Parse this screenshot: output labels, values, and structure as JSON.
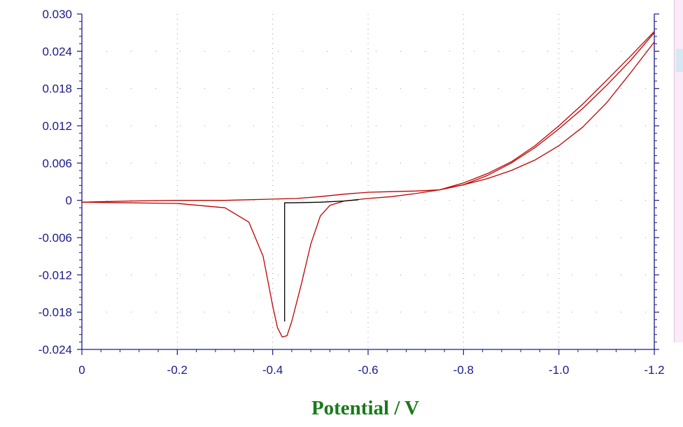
{
  "chart_data": {
    "type": "line",
    "title": "",
    "xlabel": "Potential / V",
    "ylabel": "",
    "xlim": [
      0,
      -1.2
    ],
    "ylim": [
      -0.024,
      0.03
    ],
    "x_ticks": [
      "0",
      "-0.2",
      "-0.4",
      "-0.6",
      "-0.8",
      "-1.0",
      "-1.2"
    ],
    "y_ticks": [
      "0.030",
      "0.024",
      "0.018",
      "0.012",
      "0.006",
      "0",
      "-0.006",
      "-0.012",
      "-0.018",
      "-0.024"
    ],
    "grid": "dotted",
    "series": [
      {
        "color": "#c00000",
        "x": [
          0,
          -0.1,
          -0.2,
          -0.3,
          -0.35,
          -0.38,
          -0.4,
          -0.41,
          -0.42,
          -0.43,
          -0.44,
          -0.46,
          -0.48,
          -0.5,
          -0.52,
          -0.55,
          -0.6,
          -0.65,
          -0.7,
          -0.75,
          -0.8,
          -0.85,
          -0.9,
          -0.95,
          -1.0,
          -1.05,
          -1.1,
          -1.15,
          -1.2
        ],
        "y": [
          -0.0003,
          -0.0004,
          -0.0005,
          -0.0012,
          -0.0035,
          -0.009,
          -0.017,
          -0.0205,
          -0.022,
          -0.0218,
          -0.0195,
          -0.0135,
          -0.007,
          -0.0025,
          -0.0008,
          -0.0001,
          0.0003,
          0.0006,
          0.0011,
          0.0017,
          0.0025,
          0.0035,
          0.0048,
          0.0065,
          0.0088,
          0.0118,
          0.0157,
          0.0205,
          0.0255
        ]
      },
      {
        "color": "#c00000",
        "x": [
          -1.2,
          -1.15,
          -1.1,
          -1.05,
          -1.0,
          -0.95,
          -0.9,
          -0.85,
          -0.8,
          -0.75,
          -0.7,
          -0.65,
          -0.6,
          -0.55,
          -0.5,
          -0.45,
          -0.4,
          -0.35,
          -0.3,
          -0.2,
          -0.1,
          0
        ],
        "y": [
          0.027,
          0.0225,
          0.0185,
          0.0148,
          0.0115,
          0.0085,
          0.006,
          0.004,
          0.0025,
          0.0017,
          0.0015,
          0.0014,
          0.0013,
          0.001,
          0.0006,
          0.0003,
          0.0002,
          0.0001,
          0,
          0,
          -0.0001,
          -0.0003
        ]
      },
      {
        "color": "#c00000",
        "x": [
          -0.75,
          -0.8,
          -0.85,
          -0.9,
          -0.95,
          -1.0,
          -1.05,
          -1.1,
          -1.15,
          -1.2
        ],
        "y": [
          0.0017,
          0.0028,
          0.0043,
          0.0062,
          0.0088,
          0.012,
          0.0155,
          0.0193,
          0.0232,
          0.0272
        ]
      },
      {
        "color": "#000000",
        "x": [
          -0.425,
          -0.425,
          -0.44,
          -0.5,
          -0.55,
          -0.58
        ],
        "y": [
          -0.0195,
          -0.0004,
          -0.0004,
          -0.0003,
          -0.0001,
          0.0001
        ]
      }
    ]
  }
}
